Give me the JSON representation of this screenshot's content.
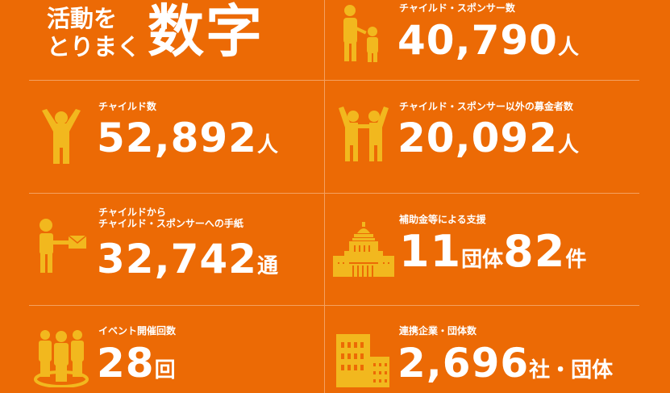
{
  "title": {
    "small_line1": "活動を",
    "small_line2": "とりまく",
    "big": "数字"
  },
  "colors": {
    "background": "#ec6a05",
    "icon": "#f2b81e",
    "text": "#ffffff"
  },
  "stats": [
    {
      "label": "チャイルド・スポンサー数",
      "value": "40,790",
      "unit": "人",
      "icon": "parent-child-icon"
    },
    {
      "label": "チャイルド数",
      "value": "52,892",
      "unit": "人",
      "icon": "child-arms-up-icon"
    },
    {
      "label": "チャイルド・スポンサー以外の募金者数",
      "value": "20,092",
      "unit": "人",
      "icon": "two-people-icon"
    },
    {
      "label_line1": "チャイルドから",
      "label_line2": "チャイルド・スポンサーへの手紙",
      "value": "32,742",
      "unit": "通",
      "icon": "letter-icon"
    },
    {
      "label": "補助金等による支援",
      "value1": "11",
      "unit1": "団体",
      "value2": "82",
      "unit2": "件",
      "icon": "diet-building-icon"
    },
    {
      "label": "イベント開催回数",
      "value": "28",
      "unit": "回",
      "icon": "group-icon"
    },
    {
      "label": "連携企業・団体数",
      "value": "2,696",
      "unit": "社・団体",
      "icon": "buildings-icon"
    }
  ]
}
